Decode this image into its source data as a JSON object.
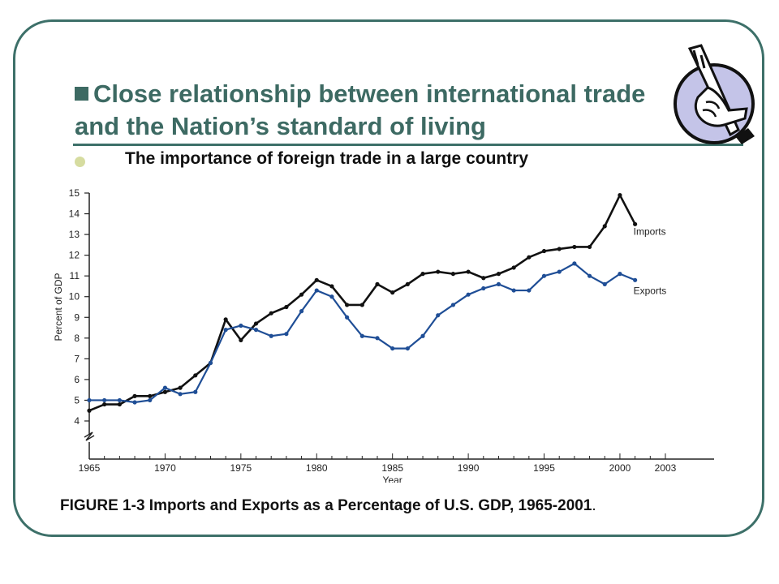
{
  "slide": {
    "title": "Close relationship between international trade and the Nation’s standard of living",
    "subtitle": "The importance of foreign trade in a large country",
    "caption": "FIGURE 1-3 Imports and Exports as a Percentage of U.S. GDP, 1965-2001",
    "caption_period": ".",
    "logo_icon": "hand-holding-key-icon",
    "colors": {
      "frame": "#3d7069",
      "title": "#3d6a63",
      "bullet": "#d6dca0",
      "logo_fill": "#c4c4e8"
    }
  },
  "chart_data": {
    "type": "line",
    "xlabel": "Year",
    "ylabel": "Percent of GDP",
    "xlim": [
      1965,
      2003
    ],
    "ylim": [
      4,
      15
    ],
    "x_ticks": [
      1965,
      1970,
      1975,
      1980,
      1985,
      1990,
      1995,
      2000,
      2003
    ],
    "y_ticks": [
      4,
      5,
      6,
      7,
      8,
      9,
      10,
      11,
      12,
      13,
      14,
      15
    ],
    "grid": false,
    "x": [
      1965,
      1966,
      1967,
      1968,
      1969,
      1970,
      1971,
      1972,
      1973,
      1974,
      1975,
      1976,
      1977,
      1978,
      1979,
      1980,
      1981,
      1982,
      1983,
      1984,
      1985,
      1986,
      1987,
      1988,
      1989,
      1990,
      1991,
      1992,
      1993,
      1994,
      1995,
      1996,
      1997,
      1998,
      1999,
      2000,
      2001
    ],
    "series": [
      {
        "name": "Imports",
        "color": "#111111",
        "values": [
          4.5,
          4.8,
          4.8,
          5.2,
          5.2,
          5.4,
          5.6,
          6.2,
          6.8,
          8.9,
          7.9,
          8.7,
          9.2,
          9.5,
          10.1,
          10.8,
          10.5,
          9.6,
          9.6,
          10.6,
          10.2,
          10.6,
          11.1,
          11.2,
          11.1,
          11.2,
          10.9,
          11.1,
          11.4,
          11.9,
          12.2,
          12.3,
          12.4,
          12.4,
          13.4,
          14.9,
          13.5
        ]
      },
      {
        "name": "Exports",
        "color": "#1f4e96",
        "values": [
          5.0,
          5.0,
          5.0,
          4.9,
          5.0,
          5.6,
          5.3,
          5.4,
          6.8,
          8.4,
          8.6,
          8.4,
          8.1,
          8.2,
          9.3,
          10.3,
          10.0,
          9.0,
          8.1,
          8.0,
          7.5,
          7.5,
          8.1,
          9.1,
          9.6,
          10.1,
          10.4,
          10.6,
          10.3,
          10.3,
          11.0,
          11.2,
          11.6,
          11.0,
          10.6,
          11.1,
          10.8
        ]
      }
    ]
  }
}
